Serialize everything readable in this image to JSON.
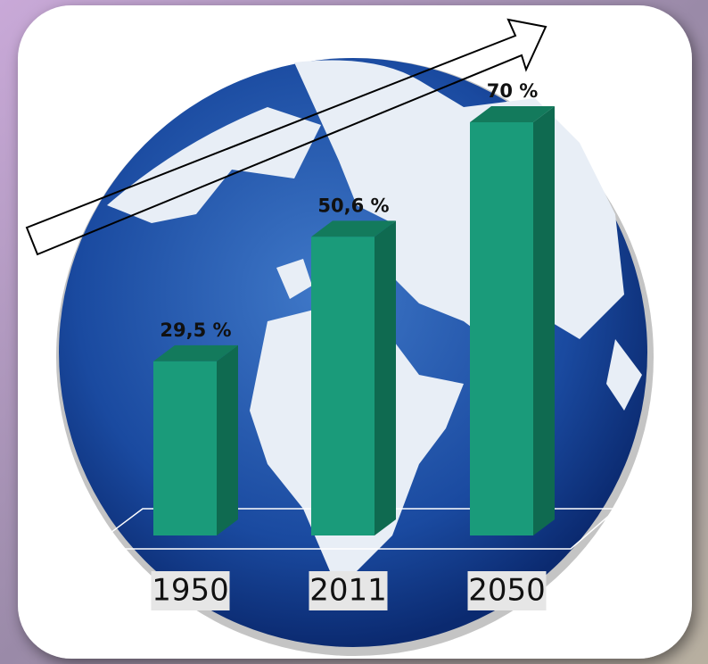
{
  "chart_data": {
    "type": "bar3d",
    "categories": [
      "1950",
      "2011",
      "2050"
    ],
    "values": [
      29.5,
      50.6,
      70
    ],
    "value_labels": [
      "29,5 %",
      "50,6 %",
      "70 %"
    ],
    "color": "#1a9b7a"
  }
}
